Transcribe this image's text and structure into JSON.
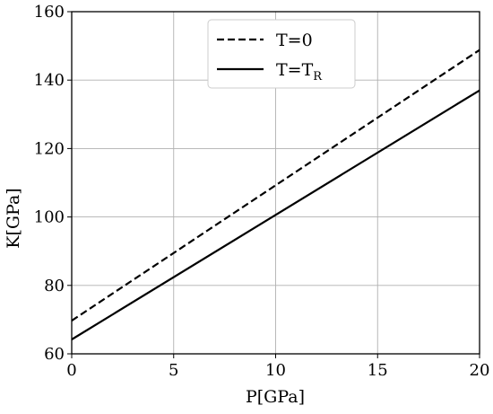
{
  "chart_data": {
    "type": "line",
    "xlabel": "P[GPa]",
    "ylabel": "K[GPa]",
    "xlim": [
      0,
      20
    ],
    "ylim": [
      60,
      160
    ],
    "xticks": [
      0,
      5,
      10,
      15,
      20
    ],
    "yticks": [
      60,
      80,
      100,
      120,
      140,
      160
    ],
    "grid": true,
    "legend_position": "top-center",
    "series": [
      {
        "name": "T=0",
        "name_main": "T=0",
        "name_sub": "",
        "style": "dashed",
        "color": "#000000",
        "x": [
          0,
          20
        ],
        "y": [
          69.7,
          148.8
        ]
      },
      {
        "name": "T=TR",
        "name_main": "T=T",
        "name_sub": "R",
        "style": "solid",
        "color": "#000000",
        "x": [
          0,
          20
        ],
        "y": [
          64.2,
          137.0
        ]
      }
    ]
  }
}
